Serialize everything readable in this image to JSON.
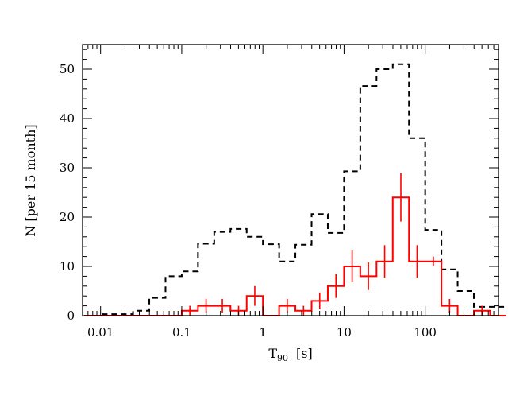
{
  "chart_data": {
    "type": "histogram",
    "xlabel_main": "T",
    "xlabel_sub": "90",
    "xlabel_unit": "[s]",
    "ylabel": "N [per 15 month]",
    "xscale": "log",
    "xlim": [
      0.006,
      800
    ],
    "ylim": [
      0,
      55
    ],
    "x_tick_labels": [
      "0.01",
      "0.1",
      "1",
      "10",
      "100"
    ],
    "x_tick_values": [
      0.01,
      0.1,
      1,
      10,
      100
    ],
    "y_tick_labels": [
      "0",
      "10",
      "20",
      "30",
      "40",
      "50"
    ],
    "y_tick_values": [
      0,
      10,
      20,
      30,
      40,
      50
    ],
    "bin_edges": [
      0.00631,
      0.01,
      0.01585,
      0.02512,
      0.03981,
      0.0631,
      0.1,
      0.1585,
      0.2512,
      0.3981,
      0.631,
      1,
      1.585,
      2.512,
      3.981,
      6.31,
      10,
      15.85,
      25.12,
      39.81,
      63.1,
      100,
      158.5,
      251.2,
      398.1,
      631,
      1000
    ],
    "series": [
      {
        "style": "dashed",
        "color": "#000000",
        "values": [
          0,
          0.3,
          0.3,
          1,
          3.6,
          8,
          9,
          14.6,
          17,
          17.6,
          16,
          14.5,
          11,
          14.4,
          20.6,
          16.8,
          29.3,
          46.6,
          50,
          51,
          36,
          17.4,
          9.4,
          5,
          1.8,
          1.8
        ]
      },
      {
        "style": "solid",
        "color": "#ff0000",
        "values": [
          0,
          0,
          0,
          0,
          0,
          0,
          1,
          2,
          2,
          1,
          4,
          0,
          2,
          1,
          3,
          6,
          10,
          8,
          11,
          24,
          11,
          11,
          2,
          0,
          1,
          0
        ],
        "errors": [
          0,
          0,
          0,
          0,
          0,
          0,
          1,
          1.4,
          1.4,
          1,
          2,
          0,
          1.4,
          1,
          1.7,
          2.4,
          3.2,
          2.8,
          3.3,
          4.9,
          3.3,
          1,
          1.4,
          0,
          1,
          0
        ]
      }
    ]
  }
}
